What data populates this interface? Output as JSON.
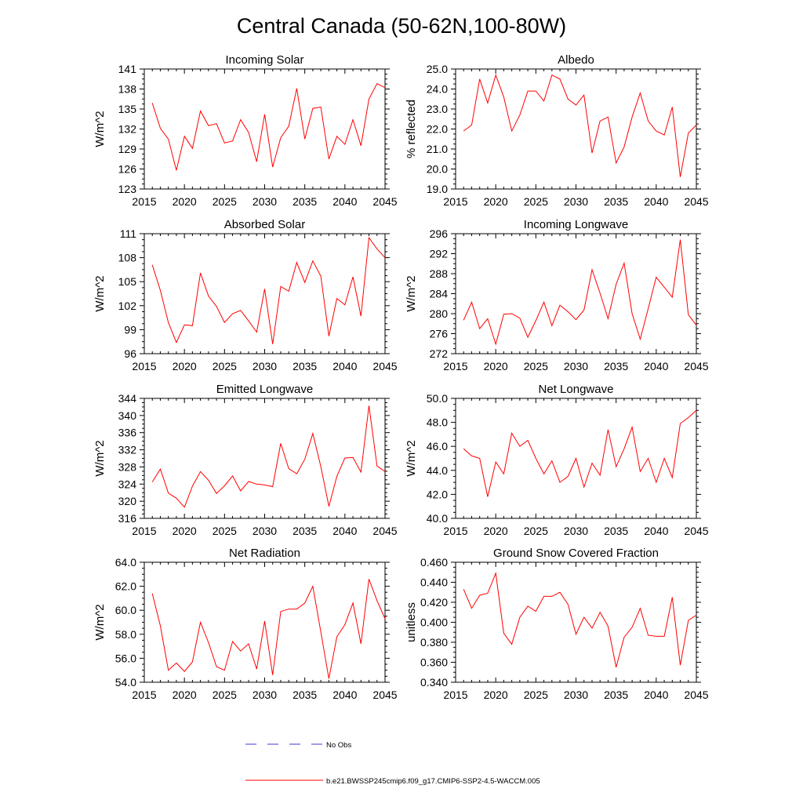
{
  "figure": {
    "title": "Central Canada (50-62N,100-80W)",
    "colors": {
      "model": "#ff0000",
      "obs": "#3b3bd6",
      "axes": "#000000"
    }
  },
  "legend": {
    "obs_label": "No Obs",
    "model_label": "b.e21.BWSSP245cmip6.f09_g17.CMIP6-SSP2-4.5-WACCM.005"
  },
  "chart_data": [
    {
      "type": "line",
      "title": "Incoming Solar",
      "ylabel": "W/m^2",
      "xlim": [
        2015,
        2045
      ],
      "ylim": [
        123,
        141
      ],
      "xticks": [
        "2015",
        "2020",
        "2025",
        "2030",
        "2035",
        "2040",
        "2045"
      ],
      "yticks": [
        "123",
        "126",
        "129",
        "132",
        "135",
        "138",
        "141"
      ],
      "x": [
        2016,
        2017,
        2018,
        2019,
        2020,
        2021,
        2022,
        2023,
        2024,
        2025,
        2026,
        2027,
        2028,
        2029,
        2030,
        2031,
        2032,
        2033,
        2034,
        2035,
        2036,
        2037,
        2038,
        2039,
        2040,
        2041,
        2042,
        2043,
        2044,
        2045
      ],
      "series": [
        {
          "name": "b.e21.BWSSP245cmip6.f09_g17.CMIP6-SSP2-4.5-WACCM.005",
          "values": [
            135.9,
            132.1,
            130.5,
            125.8,
            130.9,
            129.1,
            134.7,
            132.5,
            132.8,
            129.9,
            130.2,
            133.4,
            131.5,
            127.1,
            134.2,
            126.3,
            130.7,
            132.4,
            138.1,
            130.5,
            135.1,
            135.3,
            127.5,
            130.9,
            129.7,
            133.4,
            129.5,
            136.5,
            138.8,
            138.2
          ]
        }
      ]
    },
    {
      "type": "line",
      "title": "Albedo",
      "ylabel": "% reflected",
      "xlim": [
        2015,
        2045
      ],
      "ylim": [
        19.0,
        25.0
      ],
      "xticks": [
        "2015",
        "2020",
        "2025",
        "2030",
        "2035",
        "2040",
        "2045"
      ],
      "yticks": [
        "19.0",
        "20.0",
        "21.0",
        "22.0",
        "23.0",
        "24.0",
        "25.0"
      ],
      "x": [
        2016,
        2017,
        2018,
        2019,
        2020,
        2021,
        2022,
        2023,
        2024,
        2025,
        2026,
        2027,
        2028,
        2029,
        2030,
        2031,
        2032,
        2033,
        2034,
        2035,
        2036,
        2037,
        2038,
        2039,
        2040,
        2041,
        2042,
        2043,
        2044,
        2045
      ],
      "series": [
        {
          "name": "b.e21.BWSSP245cmip6.f09_g17.CMIP6-SSP2-4.5-WACCM.005",
          "values": [
            21.9,
            22.2,
            24.5,
            23.3,
            24.7,
            23.6,
            21.9,
            22.7,
            23.9,
            23.9,
            23.4,
            24.7,
            24.5,
            23.5,
            23.2,
            23.7,
            20.8,
            22.4,
            22.6,
            20.3,
            21.1,
            22.6,
            23.8,
            22.4,
            21.9,
            21.7,
            23.1,
            19.6,
            21.8,
            22.2
          ]
        }
      ]
    },
    {
      "type": "line",
      "title": "Absorbed Solar",
      "ylabel": "W/m^2",
      "xlim": [
        2015,
        2045
      ],
      "ylim": [
        96,
        111
      ],
      "xticks": [
        "2015",
        "2020",
        "2025",
        "2030",
        "2035",
        "2040",
        "2045"
      ],
      "yticks": [
        "96",
        "99",
        "102",
        "105",
        "108",
        "111"
      ],
      "x": [
        2016,
        2017,
        2018,
        2019,
        2020,
        2021,
        2022,
        2023,
        2024,
        2025,
        2026,
        2027,
        2028,
        2029,
        2030,
        2031,
        2032,
        2033,
        2034,
        2035,
        2036,
        2037,
        2038,
        2039,
        2040,
        2041,
        2042,
        2043,
        2044,
        2045
      ],
      "series": [
        {
          "name": "b.e21.BWSSP245cmip6.f09_g17.CMIP6-SSP2-4.5-WACCM.005",
          "values": [
            107.1,
            103.9,
            99.9,
            97.4,
            99.6,
            99.5,
            106.1,
            103.2,
            101.9,
            99.9,
            101.0,
            101.4,
            100.1,
            98.7,
            104.1,
            97.2,
            104.4,
            103.8,
            107.4,
            104.9,
            107.6,
            105.7,
            98.2,
            102.9,
            102.1,
            105.6,
            100.7,
            110.5,
            109.1,
            108.0
          ]
        }
      ]
    },
    {
      "type": "line",
      "title": "Incoming Longwave",
      "ylabel": "W/m^2",
      "xlim": [
        2015,
        2045
      ],
      "ylim": [
        272,
        296
      ],
      "xticks": [
        "2015",
        "2020",
        "2025",
        "2030",
        "2035",
        "2040",
        "2045"
      ],
      "yticks": [
        "272",
        "276",
        "280",
        "284",
        "288",
        "292",
        "296"
      ],
      "x": [
        2016,
        2017,
        2018,
        2019,
        2020,
        2021,
        2022,
        2023,
        2024,
        2025,
        2026,
        2027,
        2028,
        2029,
        2030,
        2031,
        2032,
        2033,
        2034,
        2035,
        2036,
        2037,
        2038,
        2039,
        2040,
        2041,
        2042,
        2043,
        2044,
        2045
      ],
      "series": [
        {
          "name": "b.e21.BWSSP245cmip6.f09_g17.CMIP6-SSP2-4.5-WACCM.005",
          "values": [
            278.7,
            282.3,
            277.0,
            279.0,
            273.9,
            279.9,
            280.0,
            279.1,
            275.3,
            278.6,
            282.3,
            277.6,
            281.7,
            280.4,
            278.8,
            280.7,
            288.8,
            284.1,
            279.0,
            285.9,
            290.1,
            280.0,
            274.9,
            281.0,
            287.3,
            285.3,
            283.3,
            294.8,
            279.8,
            277.7
          ]
        }
      ]
    },
    {
      "type": "line",
      "title": "Emitted Longwave",
      "ylabel": "W/m^2",
      "xlim": [
        2015,
        2045
      ],
      "ylim": [
        316,
        344
      ],
      "xticks": [
        "2015",
        "2020",
        "2025",
        "2030",
        "2035",
        "2040",
        "2045"
      ],
      "yticks": [
        "316",
        "320",
        "324",
        "328",
        "332",
        "336",
        "340",
        "344"
      ],
      "x": [
        2016,
        2017,
        2018,
        2019,
        2020,
        2021,
        2022,
        2023,
        2024,
        2025,
        2026,
        2027,
        2028,
        2029,
        2030,
        2031,
        2032,
        2033,
        2034,
        2035,
        2036,
        2037,
        2038,
        2039,
        2040,
        2041,
        2042,
        2043,
        2044,
        2045
      ],
      "series": [
        {
          "name": "b.e21.BWSSP245cmip6.f09_g17.CMIP6-SSP2-4.5-WACCM.005",
          "values": [
            324.5,
            327.5,
            321.9,
            320.7,
            318.6,
            323.5,
            326.9,
            324.9,
            321.8,
            323.6,
            325.9,
            322.4,
            324.6,
            324.0,
            323.8,
            323.4,
            333.5,
            327.6,
            326.4,
            329.8,
            335.8,
            328.1,
            318.8,
            325.8,
            330.1,
            330.2,
            326.8,
            342.3,
            328.2,
            326.9
          ]
        }
      ]
    },
    {
      "type": "line",
      "title": "Net Longwave",
      "ylabel": "W/m^2",
      "xlim": [
        2015,
        2045
      ],
      "ylim": [
        40.0,
        50.0
      ],
      "xticks": [
        "2015",
        "2020",
        "2025",
        "2030",
        "2035",
        "2040",
        "2045"
      ],
      "yticks": [
        "40.0",
        "42.0",
        "44.0",
        "46.0",
        "48.0",
        "50.0"
      ],
      "x": [
        2016,
        2017,
        2018,
        2019,
        2020,
        2021,
        2022,
        2023,
        2024,
        2025,
        2026,
        2027,
        2028,
        2029,
        2030,
        2031,
        2032,
        2033,
        2034,
        2035,
        2036,
        2037,
        2038,
        2039,
        2040,
        2041,
        2042,
        2043,
        2044,
        2045
      ],
      "series": [
        {
          "name": "b.e21.BWSSP245cmip6.f09_g17.CMIP6-SSP2-4.5-WACCM.005",
          "values": [
            45.8,
            45.2,
            45.0,
            41.8,
            44.7,
            43.7,
            47.1,
            46.0,
            46.5,
            45.0,
            43.7,
            44.8,
            43.0,
            43.5,
            45.0,
            42.6,
            44.6,
            43.6,
            47.4,
            44.3,
            45.8,
            47.6,
            43.9,
            45.0,
            43.0,
            45.0,
            43.4,
            47.9,
            48.4,
            49.0
          ]
        }
      ]
    },
    {
      "type": "line",
      "title": "Net Radiation",
      "ylabel": "W/m^2",
      "xlim": [
        2015,
        2045
      ],
      "ylim": [
        54.0,
        64.0
      ],
      "xticks": [
        "2015",
        "2020",
        "2025",
        "2030",
        "2035",
        "2040",
        "2045"
      ],
      "yticks": [
        "54.0",
        "56.0",
        "58.0",
        "60.0",
        "62.0",
        "64.0"
      ],
      "x": [
        2016,
        2017,
        2018,
        2019,
        2020,
        2021,
        2022,
        2023,
        2024,
        2025,
        2026,
        2027,
        2028,
        2029,
        2030,
        2031,
        2032,
        2033,
        2034,
        2035,
        2036,
        2037,
        2038,
        2039,
        2040,
        2041,
        2042,
        2043,
        2044,
        2045
      ],
      "series": [
        {
          "name": "b.e21.BWSSP245cmip6.f09_g17.CMIP6-SSP2-4.5-WACCM.005",
          "values": [
            61.4,
            58.7,
            55.0,
            55.6,
            54.9,
            55.7,
            59.0,
            57.3,
            55.3,
            55.0,
            57.4,
            56.6,
            57.2,
            55.1,
            59.1,
            54.6,
            59.9,
            60.1,
            60.1,
            60.6,
            62.0,
            58.2,
            54.3,
            57.8,
            58.8,
            60.6,
            57.2,
            62.6,
            60.8,
            59.3
          ]
        }
      ]
    },
    {
      "type": "line",
      "title": "Ground Snow Covered Fraction",
      "ylabel": "unitless",
      "xlim": [
        2015,
        2045
      ],
      "ylim": [
        0.34,
        0.46
      ],
      "xticks": [
        "2015",
        "2020",
        "2025",
        "2030",
        "2035",
        "2040",
        "2045"
      ],
      "yticks": [
        "0.340",
        "0.360",
        "0.380",
        "0.400",
        "0.420",
        "0.440",
        "0.460"
      ],
      "x": [
        2016,
        2017,
        2018,
        2019,
        2020,
        2021,
        2022,
        2023,
        2024,
        2025,
        2026,
        2027,
        2028,
        2029,
        2030,
        2031,
        2032,
        2033,
        2034,
        2035,
        2036,
        2037,
        2038,
        2039,
        2040,
        2041,
        2042,
        2043,
        2044,
        2045
      ],
      "series": [
        {
          "name": "b.e21.BWSSP245cmip6.f09_g17.CMIP6-SSP2-4.5-WACCM.005",
          "values": [
            0.433,
            0.414,
            0.427,
            0.429,
            0.449,
            0.389,
            0.378,
            0.405,
            0.416,
            0.411,
            0.426,
            0.426,
            0.43,
            0.418,
            0.388,
            0.405,
            0.394,
            0.41,
            0.396,
            0.355,
            0.385,
            0.395,
            0.414,
            0.387,
            0.386,
            0.386,
            0.425,
            0.357,
            0.402,
            0.407
          ]
        }
      ]
    }
  ]
}
